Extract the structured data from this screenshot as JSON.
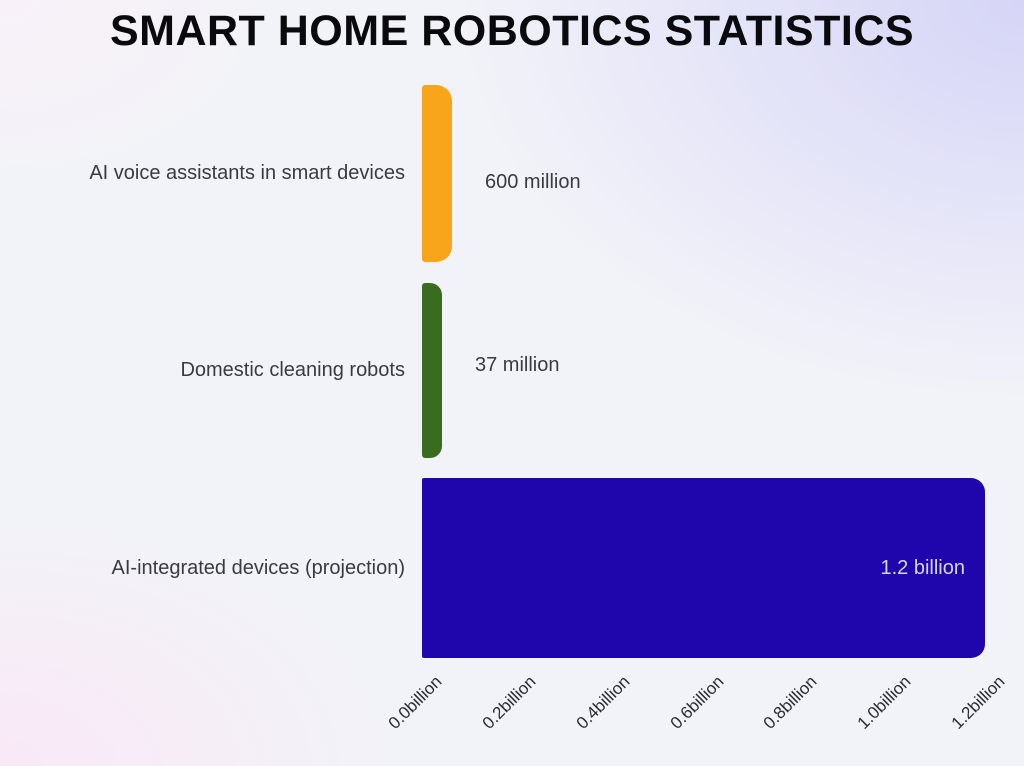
{
  "chart_data": {
    "type": "bar",
    "orientation": "horizontal",
    "title": "SMART HOME ROBOTICS STATISTICS",
    "categories": [
      "AI voice assistants in smart devices",
      "Domestic cleaning robots",
      "AI-integrated devices (projection)"
    ],
    "values_in_billions": [
      0.6,
      0.037,
      1.2
    ],
    "value_labels": [
      "600 million",
      "37 million",
      "1.2 billion"
    ],
    "bar_colors": [
      "#F9A51B",
      "#3A6C1E",
      "#1E06AC"
    ],
    "x_axis": {
      "range_billions": [
        0.0,
        1.2
      ],
      "tick_labels": [
        "0.0billion",
        "0.2billion",
        "0.4billion",
        "0.6billion",
        "0.8billion",
        "1.0billion",
        "1.2billion"
      ],
      "tick_rotation_deg": 45
    },
    "ylabel": "",
    "xlabel": "",
    "grid": false,
    "legend": false,
    "text_color": "#3a3a41",
    "title_color": "#0a0a0e",
    "in_bar_label_color": "#d8d5f2"
  }
}
